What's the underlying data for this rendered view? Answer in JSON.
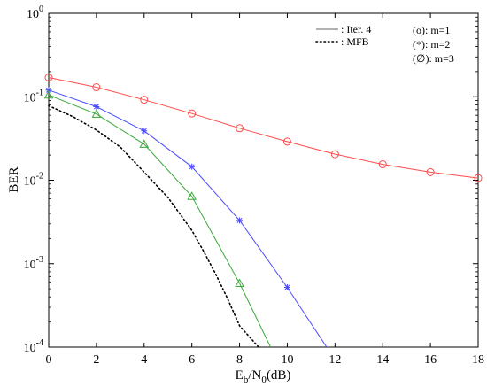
{
  "chart_data": {
    "type": "line",
    "xlabel": {
      "base": "E",
      "sub1": "b",
      "mid": "/N",
      "sub2": "0",
      "tail": "(dB)"
    },
    "ylabel": "BER",
    "xlim": [
      0,
      18
    ],
    "ylim": [
      0.0001,
      1
    ],
    "y_scale": "log",
    "x_ticks": [
      0,
      2,
      4,
      6,
      8,
      10,
      12,
      14,
      16,
      18
    ],
    "y_ticks": [
      {
        "value": 1,
        "base": "10",
        "exp": "0"
      },
      {
        "value": 0.1,
        "base": "10",
        "exp": "-1"
      },
      {
        "value": 0.01,
        "base": "10",
        "exp": "-2"
      },
      {
        "value": 0.001,
        "base": "10",
        "exp": "-3"
      },
      {
        "value": 0.0001,
        "base": "10",
        "exp": "-4"
      }
    ],
    "grid": false,
    "series": [
      {
        "marker": "circle",
        "color": "#ff4b4b",
        "line_style": "solid",
        "x": [
          0,
          2,
          4,
          6,
          8,
          10,
          12,
          14,
          16,
          18
        ],
        "y": [
          0.17,
          0.13,
          0.092,
          0.063,
          0.042,
          0.029,
          0.0205,
          0.0155,
          0.0125,
          0.0106
        ]
      },
      {
        "marker": "asterisk",
        "color": "#4b4bff",
        "line_style": "solid",
        "x": [
          0,
          2,
          4,
          6,
          8,
          10,
          11.65
        ],
        "y": [
          0.12,
          0.076,
          0.039,
          0.0145,
          0.0033,
          0.00052,
          0.0001
        ]
      },
      {
        "marker": "triangle",
        "color": "#3aa83a",
        "line_style": "solid",
        "x": [
          0,
          2,
          4,
          6,
          8,
          9.3
        ],
        "y": [
          0.105,
          0.062,
          0.027,
          0.0064,
          0.00058,
          0.0001
        ]
      },
      {
        "marker": "none",
        "color": "#000000",
        "line_style": "dotted",
        "x": [
          0,
          1,
          2,
          3,
          4,
          5,
          6,
          6.5,
          7,
          7.5,
          8,
          8.5,
          8.8
        ],
        "y": [
          0.078,
          0.058,
          0.04,
          0.025,
          0.0125,
          0.0062,
          0.0025,
          0.0014,
          0.00075,
          0.00038,
          0.00018,
          0.000125,
          0.0001
        ]
      }
    ],
    "legend": {
      "placement": "top-right",
      "line_entries": [
        {
          "style": "solid",
          "color": "#666666",
          "label": ": Iter. 4"
        },
        {
          "style": "dotted",
          "color": "#000000",
          "label": ": MFB"
        }
      ],
      "marker_entries": [
        {
          "label": "(o): m=1"
        },
        {
          "label": "(*): m=2"
        },
        {
          "label": "(∅): m=3"
        }
      ]
    }
  }
}
